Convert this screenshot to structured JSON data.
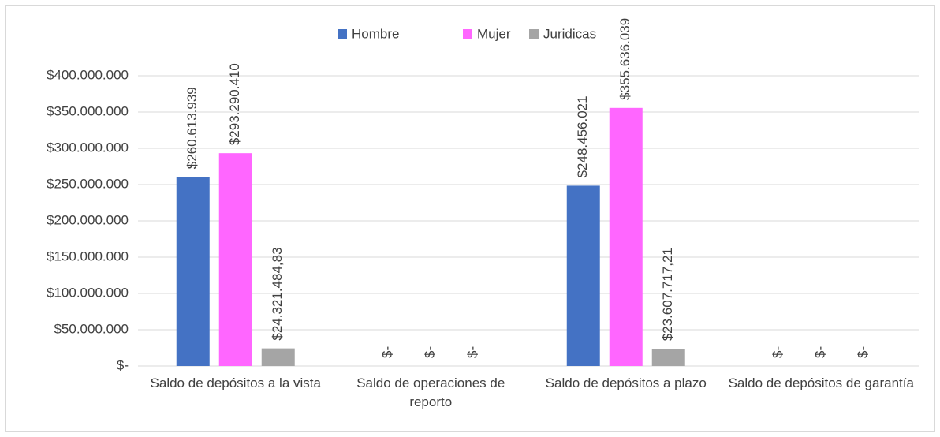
{
  "chart_data": {
    "type": "bar",
    "categories": [
      "Saldo de depósitos a la vista",
      "Saldo de operaciones de reporto",
      "Saldo de depósitos a plazo",
      "Saldo de depósitos de garantía"
    ],
    "series": [
      {
        "name": "Hombre",
        "color": "#4472c4",
        "values": [
          260613939,
          0,
          248456021,
          0
        ],
        "value_labels": [
          "$260.613.939",
          "$-",
          "$248.456.021",
          "$-"
        ]
      },
      {
        "name": "Mujer",
        "color": "#ff66ff",
        "values": [
          293290410,
          0,
          355636039,
          0
        ],
        "value_labels": [
          "$293.290.410",
          "$-",
          "$355.636.039",
          "$-"
        ]
      },
      {
        "name": "Juridicas",
        "color": "#a5a5a5",
        "values": [
          24321484.83,
          0,
          23607717.21,
          0
        ],
        "value_labels": [
          "$24.321.484,83",
          "$-",
          "$23.607.717,21",
          "$-"
        ]
      }
    ],
    "ylim": [
      0,
      400000000
    ],
    "yticks": [
      {
        "value": 0,
        "label": "$-"
      },
      {
        "value": 50000000,
        "label": "$50.000.000"
      },
      {
        "value": 100000000,
        "label": "$100.000.000"
      },
      {
        "value": 150000000,
        "label": "$150.000.000"
      },
      {
        "value": 200000000,
        "label": "$200.000.000"
      },
      {
        "value": 250000000,
        "label": "$250.000.000"
      },
      {
        "value": 300000000,
        "label": "$300.000.000"
      },
      {
        "value": 350000000,
        "label": "$350.000.000"
      },
      {
        "value": 400000000,
        "label": "$400.000.000"
      }
    ],
    "grid": true,
    "legend": "top"
  }
}
